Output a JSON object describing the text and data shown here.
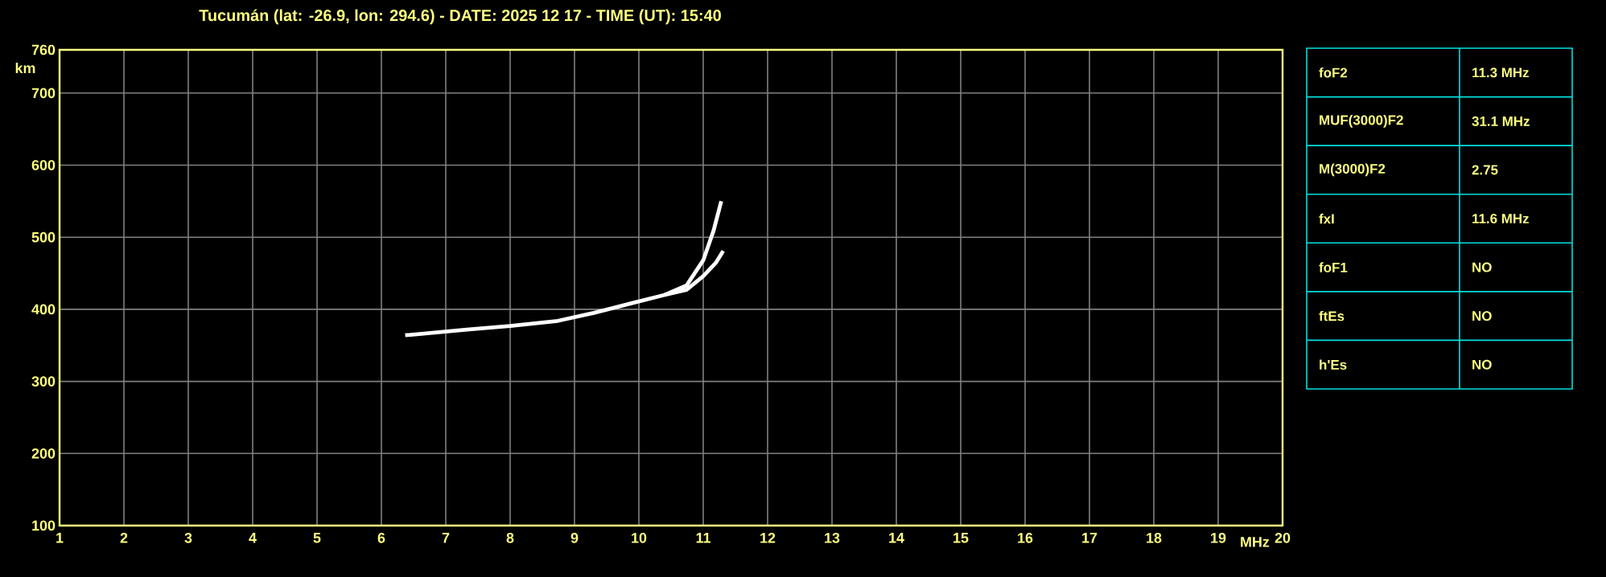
{
  "chart_data": [
    {
      "type": "line",
      "title": "Tucumán (lat: -26.9, lon: 294.6) - DATE: 2025 12 17 - TIME (UT): 15:40",
      "xlabel": "MHz",
      "ylabel": "km",
      "xlim": [
        1,
        20
      ],
      "ylim": [
        100,
        760
      ],
      "xticks": [
        1,
        2,
        3,
        4,
        5,
        6,
        7,
        8,
        9,
        10,
        11,
        12,
        13,
        14,
        15,
        16,
        17,
        18,
        19,
        20
      ],
      "yticks": [
        100,
        200,
        300,
        400,
        500,
        600,
        700,
        760
      ],
      "grid": true,
      "marker": "none",
      "line_style": "solid",
      "series": [
        {
          "color": "#ffffff",
          "x": [
            6.37,
            7.33,
            8.0,
            8.74,
            9.3,
            9.91,
            10.4,
            10.74,
            11.0,
            11.16,
            11.28
          ],
          "values": [
            364,
            372,
            377,
            384,
            395,
            409,
            420,
            433,
            468,
            509,
            550
          ]
        },
        {
          "color": "#ffffff",
          "x": [
            10.4,
            10.74,
            11.0,
            11.2,
            11.31
          ],
          "values": [
            420,
            427,
            446,
            465,
            481
          ]
        }
      ]
    },
    {
      "type": "other",
      "annotations": [
        "foF2",
        "11.3 MHz",
        "MUF(3000)F2",
        "31.1 MHz",
        "M(3000)F2",
        "2.75",
        "fxI",
        "11.6 MHz",
        "foF1",
        "NO",
        "ftEs",
        "NO",
        "h'Es",
        "NO"
      ]
    }
  ]
}
